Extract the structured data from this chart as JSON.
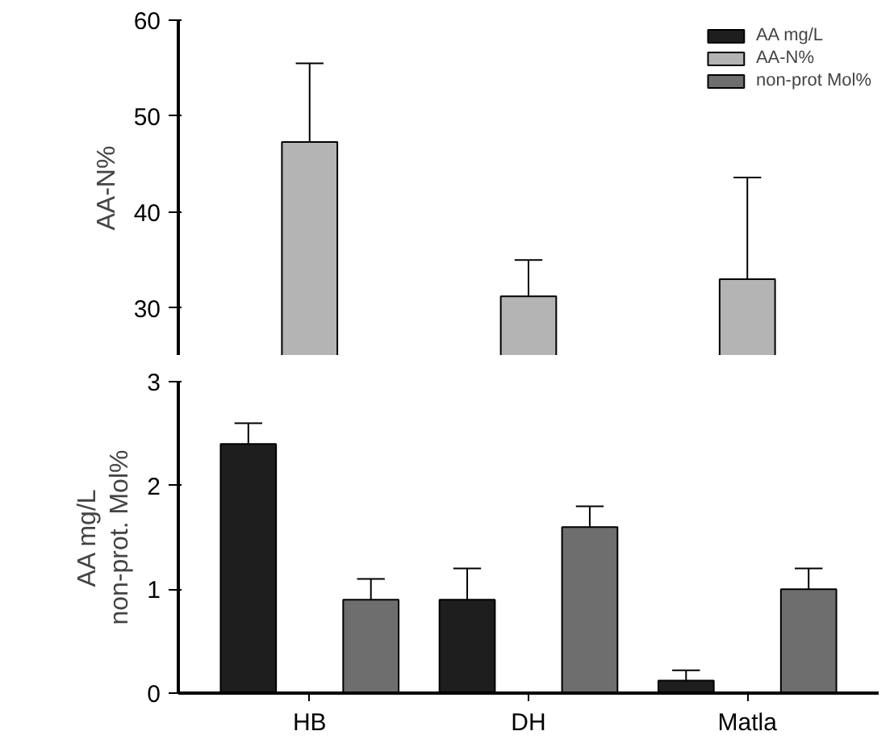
{
  "chart_data": [
    {
      "type": "bar",
      "ylabel": "AA-N%",
      "categories": [
        null,
        null,
        null
      ],
      "ylim": [
        25,
        60
      ],
      "yticks": [
        30,
        40,
        50,
        60
      ],
      "tick_labels": "y",
      "legend": "top right",
      "grid": false,
      "series": [
        {
          "name": "AA-N%",
          "color": "#b4b4b4",
          "values": [
            47.3,
            31.2,
            33.0
          ],
          "errors": [
            [
              47.3,
              55.5
            ],
            [
              31.2,
              35.0
            ],
            [
              33.0,
              43.6
            ]
          ]
        }
      ]
    },
    {
      "type": "bar",
      "ylabel": "AA mg/L\nnon-prot. Mol%",
      "categories": [
        "HB",
        "DH",
        "Matla"
      ],
      "ylim": [
        0,
        3
      ],
      "yticks": [
        0,
        1,
        2,
        3
      ],
      "legend": "top right",
      "grid": false,
      "series": [
        {
          "name": "AA mg/L",
          "color": "#1e1e1e",
          "values": [
            2.4,
            0.9,
            0.12
          ],
          "errors": [
            [
              2.4,
              2.6
            ],
            [
              0.9,
              1.2
            ],
            [
              0.12,
              0.22
            ]
          ]
        },
        {
          "name": "non-prot Mol%",
          "color": "#6e6e6e",
          "values": [
            0.9,
            1.6,
            1.0
          ],
          "errors": [
            [
              0.9,
              1.1
            ],
            [
              1.6,
              1.8
            ],
            [
              1.0,
              1.2
            ]
          ]
        }
      ]
    }
  ]
}
